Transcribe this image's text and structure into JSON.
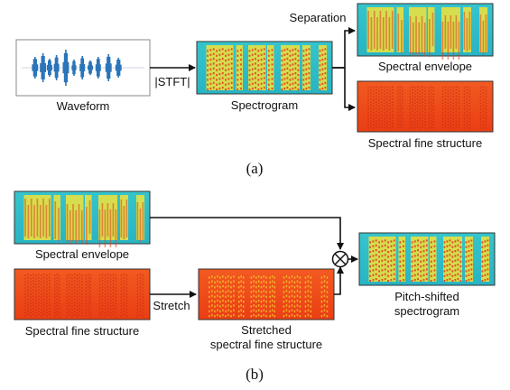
{
  "part_a": {
    "caption": "(a)",
    "waveform_label": "Waveform",
    "stft_label": "|STFT|",
    "spectrogram_label": "Spectrogram",
    "separation_label": "Separation",
    "envelope_label": "Spectral envelope",
    "fine_structure_label": "Spectral fine structure"
  },
  "part_b": {
    "caption": "(b)",
    "envelope_label": "Spectral envelope",
    "fine_structure_label": "Spectral fine structure",
    "stretch_label": "Stretch",
    "stretched_label_line1": "Stretched",
    "stretched_label_line2": "spectral fine structure",
    "output_label_line1": "Pitch-shifted",
    "output_label_line2": "spectrogram"
  },
  "colors": {
    "spectro_bg": "#2fc0c8",
    "spectro_mid": "#e8e040",
    "spectro_hot": "#e04020",
    "fine_bg": "#f04a1a",
    "waveform": "#2a74b8"
  }
}
